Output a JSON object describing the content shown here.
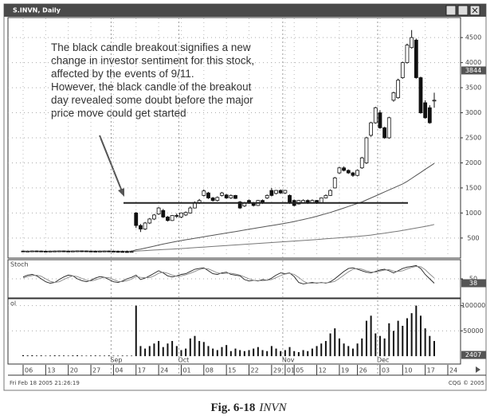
{
  "chart_data": [
    {
      "type": "candlestick",
      "title": "S.INVN, Daily",
      "annotation": [
        "The black candle breakout signifies a new",
        "change in investor sentiment for this stock,",
        "affected by the events of 9/11.",
        "However, the black candle of the breakout",
        "day revealed some doubt before the major",
        "price move could get started"
      ],
      "categories": [
        "06",
        null,
        null,
        null,
        null,
        "13",
        null,
        null,
        null,
        null,
        "20",
        null,
        null,
        null,
        null,
        "27",
        null,
        null,
        null,
        null,
        "04",
        null,
        null,
        null,
        null,
        "17",
        null,
        null,
        null,
        null,
        "24",
        null,
        null,
        null,
        null,
        "01",
        null,
        null,
        null,
        null,
        "08",
        null,
        null,
        null,
        null,
        "15",
        null,
        null,
        null,
        null,
        "22",
        null,
        null,
        null,
        null,
        "29",
        null,
        null,
        "01",
        null,
        "05",
        null,
        null,
        null,
        null,
        "12",
        null,
        null,
        null,
        null,
        "19",
        null,
        null,
        null,
        "26",
        null,
        null,
        null,
        null,
        "03",
        null,
        null,
        null,
        null,
        "10",
        null,
        null,
        null,
        null,
        "17",
        null,
        null,
        null,
        null,
        "24"
      ],
      "months": [
        null,
        null,
        null,
        null,
        null,
        null,
        null,
        null,
        null,
        null,
        null,
        null,
        null,
        null,
        null,
        null,
        null,
        null,
        null,
        null,
        "Sep",
        null,
        null,
        null,
        null,
        null,
        null,
        null,
        null,
        null,
        null,
        null,
        null,
        null,
        null,
        "Oct",
        null,
        null,
        null,
        null,
        null,
        null,
        null,
        null,
        null,
        null,
        null,
        null,
        null,
        null,
        null,
        null,
        null,
        null,
        null,
        null,
        null,
        null,
        "Nov",
        null,
        null,
        null,
        null,
        null,
        null,
        null,
        null,
        null,
        null,
        null,
        null,
        null,
        null,
        null,
        null,
        null,
        null,
        null,
        null,
        "Dec",
        null,
        null,
        null,
        null,
        null,
        null,
        null,
        null,
        null,
        null,
        null,
        null,
        null,
        null,
        null
      ],
      "open": [
        240,
        235,
        238,
        242,
        240,
        236,
        234,
        238,
        240,
        242,
        238,
        236,
        240,
        244,
        242,
        238,
        236,
        234,
        238,
        240,
        236,
        232,
        230,
        228,
        226,
        1000,
        750,
        680,
        800,
        880,
        980,
        1050,
        920,
        850,
        950,
        920,
        960,
        1000,
        1100,
        1200,
        1350,
        1400,
        1300,
        1250,
        1350,
        1360,
        1300,
        1350,
        1220,
        1140,
        1250,
        1200,
        1150,
        1250,
        1300,
        1450,
        1390,
        1450,
        1400,
        1350,
        1250,
        1180,
        1200,
        1250,
        1200,
        1250,
        1200,
        1300,
        1350,
        1500,
        1800,
        1900,
        1850,
        1800,
        1750,
        1900,
        2000,
        2550,
        2800,
        3000,
        2700,
        2500,
        3250,
        3300,
        3700,
        4000,
        4300,
        4450,
        3700,
        3200,
        3100,
        3250,
        null,
        null,
        null
      ],
      "high": [
        250,
        250,
        250,
        250,
        250,
        250,
        250,
        250,
        250,
        250,
        250,
        250,
        250,
        250,
        250,
        250,
        250,
        250,
        250,
        250,
        250,
        250,
        250,
        250,
        250,
        1020,
        780,
        820,
        900,
        980,
        1120,
        1080,
        940,
        960,
        990,
        1010,
        1030,
        1130,
        1230,
        1280,
        1470,
        1420,
        1320,
        1330,
        1420,
        1380,
        1370,
        1360,
        1240,
        1220,
        1270,
        1220,
        1260,
        1270,
        1370,
        1500,
        1460,
        1470,
        1460,
        1370,
        1270,
        1260,
        1270,
        1270,
        1270,
        1260,
        1310,
        1370,
        1470,
        1720,
        1920,
        1930,
        1870,
        1820,
        1870,
        2120,
        2520,
        2820,
        3120,
        3050,
        2720,
        2920,
        3420,
        3680,
        4020,
        4380,
        4650,
        4480,
        3720,
        3250,
        3150,
        3400,
        null,
        null,
        null
      ],
      "low": [
        220,
        220,
        220,
        220,
        220,
        220,
        220,
        220,
        220,
        220,
        220,
        220,
        220,
        220,
        220,
        220,
        220,
        220,
        220,
        220,
        220,
        220,
        220,
        220,
        220,
        700,
        620,
        660,
        780,
        860,
        960,
        900,
        830,
        840,
        900,
        900,
        940,
        990,
        1090,
        1180,
        1330,
        1280,
        1230,
        1230,
        1330,
        1280,
        1280,
        1280,
        1080,
        1120,
        1180,
        1130,
        1140,
        1180,
        1280,
        1330,
        1370,
        1380,
        1380,
        1180,
        1130,
        1170,
        1190,
        1180,
        1190,
        1180,
        1190,
        1290,
        1340,
        1490,
        1780,
        1830,
        1780,
        1720,
        1730,
        1880,
        1980,
        2520,
        2780,
        2680,
        2480,
        2480,
        3220,
        3280,
        3680,
        3980,
        4280,
        3680,
        2980,
        2880,
        2780,
        3100,
        null,
        null,
        null
      ],
      "close": [
        235,
        238,
        242,
        240,
        236,
        234,
        238,
        240,
        242,
        238,
        236,
        240,
        244,
        242,
        238,
        236,
        234,
        238,
        240,
        236,
        232,
        230,
        228,
        226,
        230,
        750,
        680,
        800,
        880,
        960,
        1100,
        920,
        850,
        950,
        940,
        1000,
        1010,
        1100,
        1210,
        1250,
        1440,
        1300,
        1250,
        1310,
        1400,
        1300,
        1350,
        1290,
        1100,
        1200,
        1200,
        1150,
        1250,
        1200,
        1350,
        1350,
        1450,
        1400,
        1450,
        1200,
        1150,
        1250,
        1250,
        1200,
        1250,
        1200,
        1300,
        1350,
        1450,
        1700,
        1900,
        1850,
        1800,
        1750,
        1850,
        2100,
        2500,
        2800,
        3100,
        2700,
        2500,
        2900,
        3400,
        3650,
        4000,
        4350,
        4500,
        3700,
        3000,
        2900,
        2800,
        3250,
        null,
        null,
        null
      ],
      "overlays": [
        {
          "color": "#555555",
          "values": [
            236,
            236,
            237,
            237,
            237,
            237,
            237,
            238,
            238,
            238,
            238,
            238,
            238,
            238,
            238,
            238,
            238,
            238,
            238,
            238,
            238,
            237,
            237,
            237,
            236,
            265,
            280,
            298,
            318,
            338,
            360,
            380,
            398,
            416,
            434,
            450,
            465,
            480,
            495,
            510,
            525,
            540,
            555,
            570,
            585,
            600,
            615,
            630,
            645,
            660,
            675,
            690,
            705,
            720,
            735,
            750,
            765,
            780,
            795,
            810,
            830,
            850,
            870,
            890,
            910,
            935,
            960,
            985,
            1010,
            1040,
            1070,
            1100,
            1130,
            1160,
            1190,
            1220,
            1260,
            1300,
            1340,
            1380,
            1420,
            1460,
            1500,
            1540,
            1580,
            1630,
            1690,
            1750,
            1810,
            1870,
            1930,
            1990,
            null,
            null,
            null
          ]
        },
        {
          "color": "#777777",
          "values": [
            232,
            232,
            232,
            232,
            232,
            232,
            232,
            232,
            232,
            232,
            232,
            232,
            232,
            232,
            232,
            232,
            232,
            232,
            232,
            232,
            232,
            232,
            232,
            232,
            232,
            240,
            245,
            250,
            255,
            260,
            265,
            270,
            275,
            280,
            285,
            290,
            296,
            302,
            308,
            314,
            320,
            326,
            332,
            338,
            344,
            350,
            356,
            362,
            368,
            374,
            380,
            386,
            392,
            398,
            404,
            410,
            416,
            422,
            428,
            434,
            440,
            446,
            452,
            458,
            464,
            470,
            477,
            484,
            491,
            498,
            505,
            512,
            519,
            526,
            533,
            540,
            550,
            560,
            572,
            584,
            596,
            610,
            624,
            638,
            652,
            668,
            684,
            700,
            716,
            732,
            750,
            770,
            null,
            null,
            null
          ]
        }
      ],
      "hline": 1200,
      "last_price": 3844,
      "ylim": [
        100,
        4900
      ],
      "yticks": [
        500,
        1000,
        1500,
        2000,
        2500,
        3000,
        3500,
        4000,
        4500
      ],
      "grid": true,
      "timestamp": "Fri Feb 18 2005 21:26:19",
      "copyright": "CQG © 2005"
    },
    {
      "type": "line",
      "label": "Stoch",
      "series": [
        {
          "color": "#222222",
          "values": [
            55,
            60,
            62,
            58,
            50,
            42,
            38,
            40,
            48,
            55,
            60,
            58,
            50,
            45,
            42,
            46,
            52,
            56,
            54,
            48,
            42,
            40,
            44,
            50,
            54,
            60,
            48,
            52,
            58,
            65,
            72,
            66,
            58,
            55,
            58,
            62,
            64,
            70,
            76,
            78,
            80,
            72,
            64,
            62,
            66,
            68,
            62,
            60,
            58,
            48,
            44,
            46,
            44,
            48,
            46,
            52,
            60,
            66,
            64,
            66,
            56,
            40,
            36,
            38,
            40,
            38,
            40,
            38,
            42,
            50,
            60,
            70,
            78,
            80,
            76,
            72,
            68,
            66,
            70,
            74,
            76,
            72,
            66,
            72,
            78,
            82,
            84,
            86,
            78,
            62,
            50,
            38,
            null,
            null,
            null
          ]
        },
        {
          "color": "#888888",
          "values": [
            52,
            56,
            59,
            60,
            57,
            50,
            43,
            40,
            42,
            48,
            54,
            58,
            56,
            51,
            46,
            44,
            47,
            51,
            54,
            53,
            48,
            43,
            42,
            45,
            49,
            56,
            54,
            53,
            53,
            58,
            65,
            68,
            65,
            60,
            57,
            58,
            61,
            65,
            70,
            75,
            78,
            77,
            72,
            66,
            64,
            65,
            65,
            63,
            60,
            55,
            50,
            46,
            45,
            45,
            46,
            48,
            53,
            59,
            63,
            65,
            62,
            54,
            44,
            38,
            38,
            39,
            39,
            39,
            40,
            43,
            51,
            60,
            69,
            76,
            78,
            76,
            72,
            69,
            68,
            71,
            74,
            75,
            71,
            70,
            72,
            77,
            81,
            84,
            83,
            75,
            63,
            52,
            null,
            null,
            null
          ]
        }
      ],
      "ylim": [
        0,
        100
      ],
      "yticks": [
        50
      ],
      "grid": true
    },
    {
      "type": "bar",
      "label": "ol",
      "color": "#111111",
      "values": [
        2000,
        1500,
        1800,
        1200,
        1500,
        1000,
        1200,
        1600,
        1400,
        1300,
        1100,
        1500,
        1700,
        1200,
        1000,
        1300,
        1400,
        1200,
        1100,
        1500,
        1000,
        900,
        1200,
        1100,
        1000,
        100000,
        20000,
        15000,
        20000,
        25000,
        30000,
        18000,
        25000,
        30000,
        20000,
        12000,
        15000,
        35000,
        40000,
        30000,
        28000,
        20000,
        15000,
        12000,
        18000,
        22000,
        10000,
        15000,
        12000,
        10000,
        12000,
        15000,
        18000,
        12000,
        10000,
        20000,
        15000,
        10000,
        12000,
        18000,
        10000,
        8000,
        12000,
        10000,
        15000,
        20000,
        25000,
        30000,
        45000,
        55000,
        35000,
        25000,
        20000,
        15000,
        25000,
        35000,
        70000,
        80000,
        45000,
        40000,
        35000,
        65000,
        50000,
        70000,
        60000,
        75000,
        85000,
        100000,
        80000,
        55000,
        40000,
        30000,
        null,
        null,
        null
      ],
      "last_value": 2407,
      "ylim": [
        -14000,
        112000
      ],
      "yticks": [
        50000,
        100000
      ],
      "grid": true
    }
  ],
  "caption": {
    "number": "Fig. 6-18",
    "name": "INVN"
  }
}
